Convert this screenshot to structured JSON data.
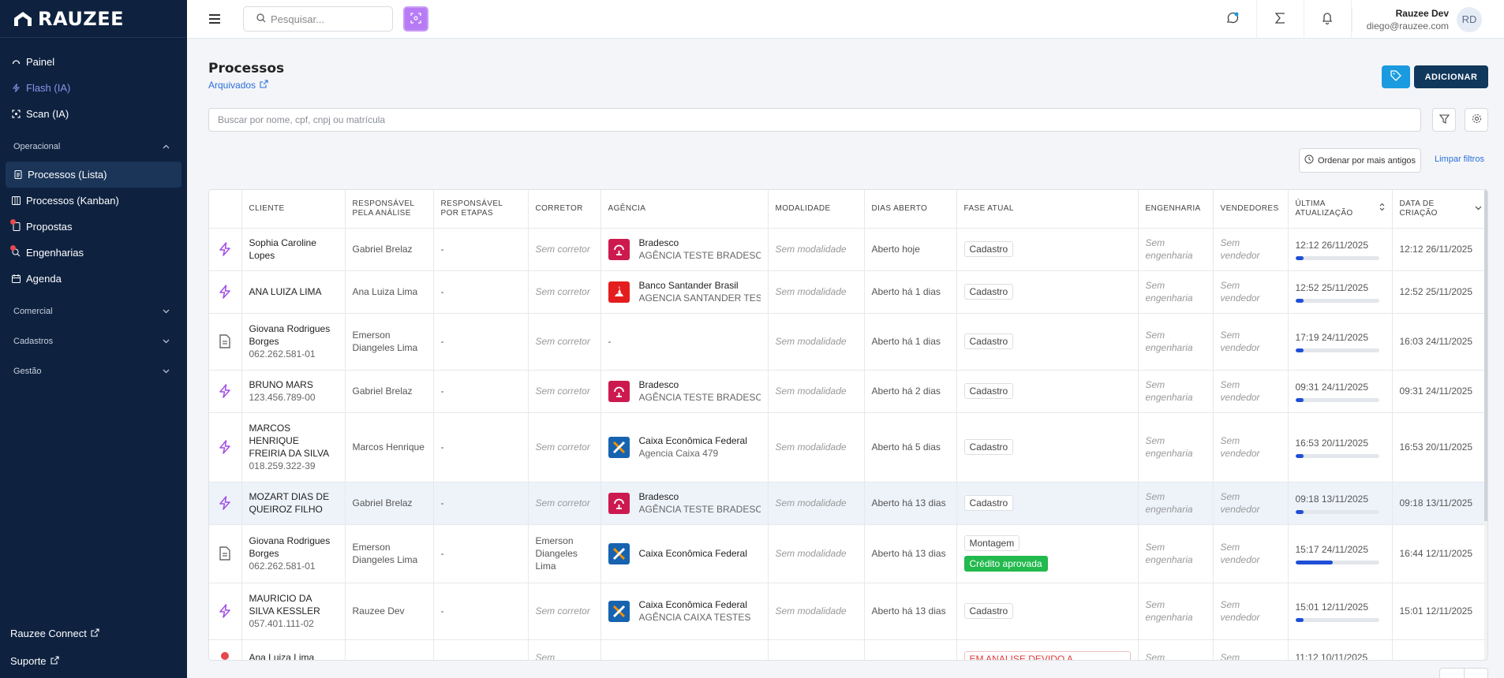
{
  "brand": {
    "name": "RAUZEE"
  },
  "sidebar": {
    "items": [
      {
        "label": "Painel"
      },
      {
        "label": "Flash (IA)"
      },
      {
        "label": "Scan (IA)"
      }
    ],
    "sections": {
      "operacional": "Operacional",
      "comercial": "Comercial",
      "cadastros": "Cadastros",
      "gestao": "Gestão"
    },
    "operacional_items": [
      {
        "label": "Processos (Lista)"
      },
      {
        "label": "Processos (Kanban)"
      },
      {
        "label": "Propostas"
      },
      {
        "label": "Engenharias"
      },
      {
        "label": "Agenda"
      }
    ],
    "bottom": {
      "connect": "Rauzee Connect",
      "support": "Suporte"
    }
  },
  "topbar": {
    "search_placeholder": "Pesquisar...",
    "user": {
      "name": "Rauzee Dev",
      "email": "diego@rauzee.com",
      "initials": "RD"
    }
  },
  "page": {
    "title": "Processos",
    "archived_link": "Arquivados",
    "add_button": "ADICIONAR",
    "search_placeholder": "Buscar por nome, cpf, cnpj ou matrícula",
    "sort_button": "Ordenar por mais antigos",
    "clear_filters": "Limpar filtros"
  },
  "table": {
    "headers": {
      "cliente": "CLIENTE",
      "resp_analise": "RESPONSÁVEL PELA ANÁLISE",
      "resp_etapas": "RESPONSÁVEL POR ETAPAS",
      "corretor": "CORRETOR",
      "agencia": "AGÊNCIA",
      "modalidade": "MODALIDADE",
      "dias": "DIAS ABERTO",
      "fase": "FASE ATUAL",
      "engenharia": "ENGENHARIA",
      "vendedores": "VENDEDORES",
      "ultima": "ÚLTIMA ATUALIZAÇÃO",
      "criacao": "DATA DE CRIAÇÃO"
    },
    "rows": [
      {
        "icon": "flash",
        "client": "Sophia Caroline Lopes",
        "doc": "",
        "resp": "Gabriel Brelaz",
        "etapas": "-",
        "corretor": "Sem corretor",
        "bank": "Bradesco",
        "agency": "AGÊNCIA TESTE BRADESCO",
        "modalidade": "Sem modalidade",
        "dias": "Aberto hoje",
        "fase": "Cadastro",
        "fase2": "",
        "eng": "Sem engenharia",
        "vend": "Sem vendedor",
        "ultima": "12:12 26/11/2025",
        "progress": 0.1,
        "criacao": "12:12 26/11/2025"
      },
      {
        "icon": "flash",
        "client": "ANA LUIZA LIMA",
        "doc": "",
        "resp": "Ana Luiza Lima",
        "etapas": "-",
        "corretor": "Sem corretor",
        "bank": "Banco Santander Brasil",
        "agency": "AGENCIA SANTANDER TESTE",
        "modalidade": "Sem modalidade",
        "dias": "Aberto há 1 dias",
        "fase": "Cadastro",
        "fase2": "",
        "eng": "Sem engenharia",
        "vend": "Sem vendedor",
        "ultima": "12:52 25/11/2025",
        "progress": 0.1,
        "criacao": "12:52 25/11/2025"
      },
      {
        "icon": "doc",
        "client": "Giovana Rodrigues Borges",
        "doc": "062.262.581-01",
        "resp": "Emerson Diangeles Lima",
        "etapas": "-",
        "corretor": "Sem corretor",
        "bank": "",
        "agency": "-",
        "modalidade": "Sem modalidade",
        "dias": "Aberto há 1 dias",
        "fase": "Cadastro",
        "fase2": "",
        "eng": "Sem engenharia",
        "vend": "Sem vendedor",
        "ultima": "17:19 24/11/2025",
        "progress": 0.1,
        "criacao": "16:03 24/11/2025"
      },
      {
        "icon": "flash",
        "client": "BRUNO MARS",
        "doc": "123.456.789-00",
        "resp": "Gabriel Brelaz",
        "etapas": "-",
        "corretor": "Sem corretor",
        "bank": "Bradesco",
        "agency": "AGÊNCIA TESTE BRADESCO",
        "modalidade": "Sem modalidade",
        "dias": "Aberto há 2 dias",
        "fase": "Cadastro",
        "fase2": "",
        "eng": "Sem engenharia",
        "vend": "Sem vendedor",
        "ultima": "09:31 24/11/2025",
        "progress": 0.1,
        "criacao": "09:31 24/11/2025"
      },
      {
        "icon": "flash",
        "client": "MARCOS HENRIQUE FREIRIA DA SILVA",
        "doc": "018.259.322-39",
        "resp": "Marcos Henrique",
        "etapas": "-",
        "corretor": "Sem corretor",
        "bank": "Caixa Econômica Federal",
        "agency": "Agencia Caixa 479",
        "modalidade": "Sem modalidade",
        "dias": "Aberto há 5 dias",
        "fase": "Cadastro",
        "fase2": "",
        "eng": "Sem engenharia",
        "vend": "Sem vendedor",
        "ultima": "16:53 20/11/2025",
        "progress": 0.1,
        "criacao": "16:53 20/11/2025"
      },
      {
        "icon": "flash",
        "client": "MOZART DIAS DE QUEIROZ FILHO",
        "doc": "",
        "resp": "Gabriel Brelaz",
        "etapas": "-",
        "corretor": "Sem corretor",
        "bank": "Bradesco",
        "agency": "AGÊNCIA TESTE BRADESCO",
        "modalidade": "Sem modalidade",
        "dias": "Aberto há 13 dias",
        "fase": "Cadastro",
        "fase2": "",
        "eng": "Sem engenharia",
        "vend": "Sem vendedor",
        "ultima": "09:18 13/11/2025",
        "progress": 0.1,
        "criacao": "09:18 13/11/2025",
        "highlight": true
      },
      {
        "icon": "doc",
        "client": "Giovana Rodrigues Borges",
        "doc": "062.262.581-01",
        "resp": "Emerson Diangeles Lima",
        "etapas": "-",
        "corretor": "Emerson Diangeles Lima",
        "bank": "Caixa Econômica Federal",
        "agency": "",
        "modalidade": "Sem modalidade",
        "dias": "Aberto há 13 dias",
        "fase": "Montagem",
        "fase2": "Crédito aprovada",
        "eng": "Sem engenharia",
        "vend": "Sem vendedor",
        "ultima": "15:17 24/11/2025",
        "progress": 0.45,
        "criacao": "16:44 12/11/2025"
      },
      {
        "icon": "flash",
        "client": "MAURICIO DA SILVA KESSLER",
        "doc": "057.401.111-02",
        "resp": "Rauzee Dev",
        "etapas": "-",
        "corretor": "Sem corretor",
        "bank": "Caixa Econômica Federal",
        "agency": "AGÊNCIA CAIXA TESTES",
        "modalidade": "Sem modalidade",
        "dias": "Aberto há 13 dias",
        "fase": "Cadastro",
        "fase2": "",
        "eng": "Sem engenharia",
        "vend": "Sem vendedor",
        "ultima": "15:01 12/11/2025",
        "progress": 0.1,
        "criacao": "15:01 12/11/2025"
      },
      {
        "icon": "alert",
        "client": "Ana Luiza Lima",
        "doc": "",
        "resp": "",
        "etapas": "",
        "corretor": "Sem",
        "bank": "",
        "agency": "",
        "modalidade": "",
        "dias": "",
        "fase": "EM ANALISE DEVIDO A RESTRIÇÃO",
        "fase2": "",
        "eng": "Sem",
        "vend": "Sem",
        "ultima": "11:12 10/11/2025",
        "progress": 0,
        "criacao": "",
        "partial": true
      }
    ]
  },
  "colors": {
    "sidebar": "#0e2240",
    "primary": "#10375c",
    "accent": "#1a9be0",
    "scan": "#b77cf5",
    "success": "#22b94d",
    "danger": "#e03b3b"
  }
}
